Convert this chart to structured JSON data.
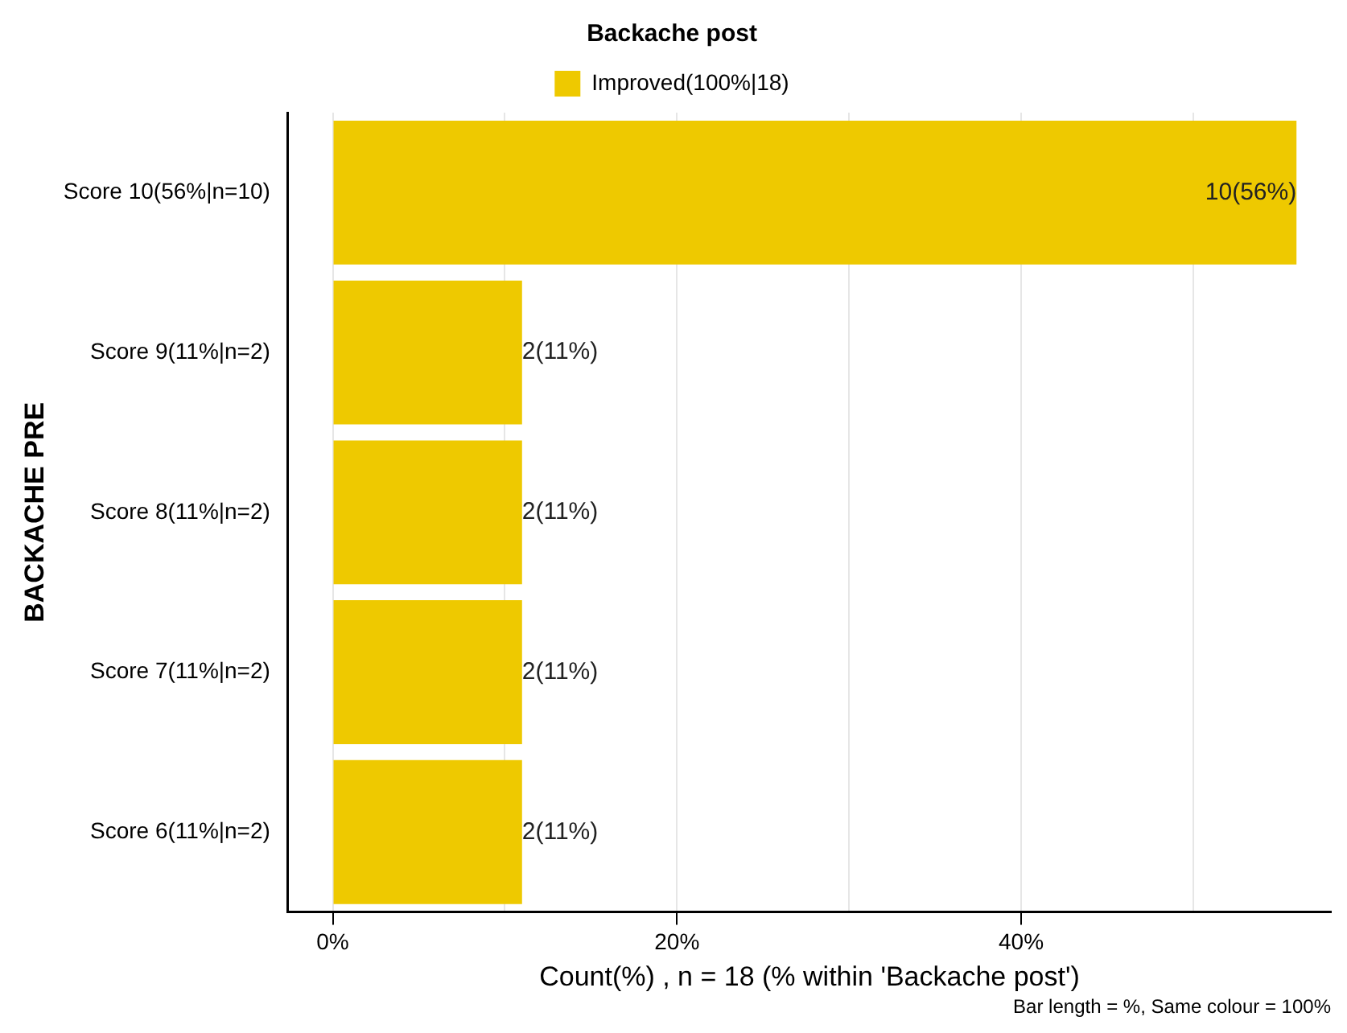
{
  "chart_data": {
    "type": "bar",
    "orientation": "horizontal",
    "legend_title": "Backache post",
    "xlabel": "Count(%) , n = 18 (% within 'Backache post')",
    "ylabel": "BACKACHE PRE",
    "categories": [
      "Score 10(56%|n=10)",
      "Score 9(11%|n=2)",
      "Score 8(11%|n=2)",
      "Score 7(11%|n=2)",
      "Score 6(11%|n=2)"
    ],
    "series": [
      {
        "name": "Improved(100%|18)",
        "color": "#eec900",
        "values": [
          56,
          11,
          11,
          11,
          11
        ],
        "value_labels": [
          "10(56%)",
          "2(11%)",
          "2(11%)",
          "2(11%)",
          "2(11%)"
        ]
      }
    ],
    "xlim": [
      -2.6,
      58
    ],
    "xticks": [
      {
        "value": 0,
        "label": "0%"
      },
      {
        "value": 10,
        "label": null
      },
      {
        "value": 20,
        "label": "20%"
      },
      {
        "value": 30,
        "label": null
      },
      {
        "value": 40,
        "label": "40%"
      },
      {
        "value": 50,
        "label": null
      }
    ],
    "grid": "x",
    "legend": "top",
    "annotations": [
      "Bar length = %, Same colour = 100%"
    ]
  }
}
